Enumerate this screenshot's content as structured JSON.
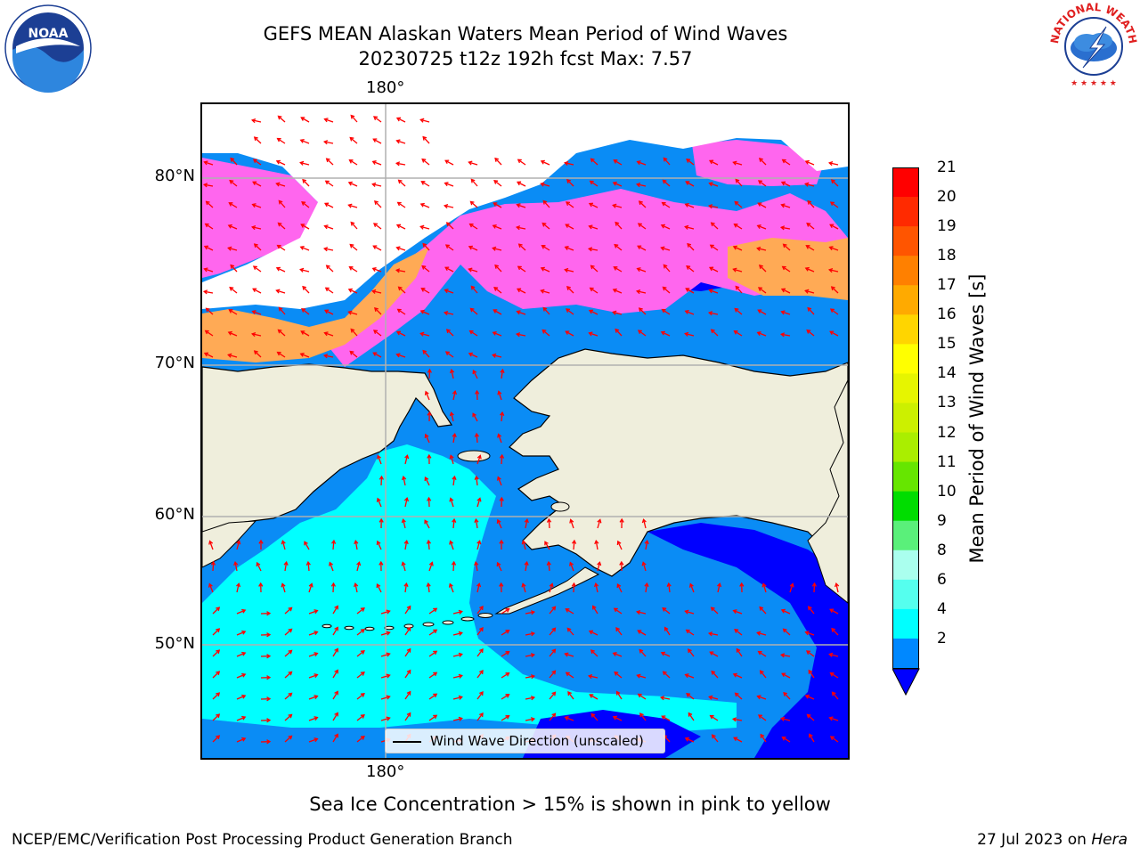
{
  "title": {
    "line1": "GEFS MEAN Alaskan Waters Mean Period of Wind Waves",
    "line2": "20230725 t12z 192h fcst   Max: 7.57"
  },
  "axes": {
    "lon_top": "180°",
    "lon_bottom": "180°",
    "lat_labels": [
      "80°N",
      "70°N",
      "60°N",
      "50°N"
    ]
  },
  "legend": {
    "label": "Wind Wave Direction (unscaled)"
  },
  "colorbar": {
    "label": "Mean Period of Wind Waves [s]",
    "ticks": [
      "21",
      "20",
      "19",
      "18",
      "17",
      "16",
      "15",
      "14",
      "13",
      "12",
      "11",
      "10",
      "9",
      "8",
      "6",
      "4",
      "2"
    ],
    "colors_top_to_bottom": [
      "#ff0000",
      "#ff2a00",
      "#ff5500",
      "#ff8000",
      "#ffaa00",
      "#ffd500",
      "#ffff00",
      "#e6f500",
      "#ccf000",
      "#aaee00",
      "#66e600",
      "#00dd00",
      "#5af07a",
      "#aaffee",
      "#55ffee",
      "#00ffff",
      "#0088ff"
    ],
    "extend_color": "#0000ff"
  },
  "colors": {
    "land": "#efeedc",
    "ocean_light": "#00ffff",
    "ocean_mid": "#0a8cf5",
    "ocean_dark": "#0000ff",
    "ice_pink": "#ff66ee",
    "ice_orange": "#ffaa55",
    "arrow": "#ff0000",
    "grid": "#b0b0b0"
  },
  "footnote": "Sea Ice Concentration > 15% is shown in pink to yellow",
  "credit": {
    "left": "NCEP/EMC/Verification Post Processing Product Generation Branch",
    "date": "27 Jul 2023 on ",
    "host": "Hera"
  },
  "logos": {
    "noaa": "NOAA",
    "nws": "NATIONAL WEATHER SERVICE"
  }
}
